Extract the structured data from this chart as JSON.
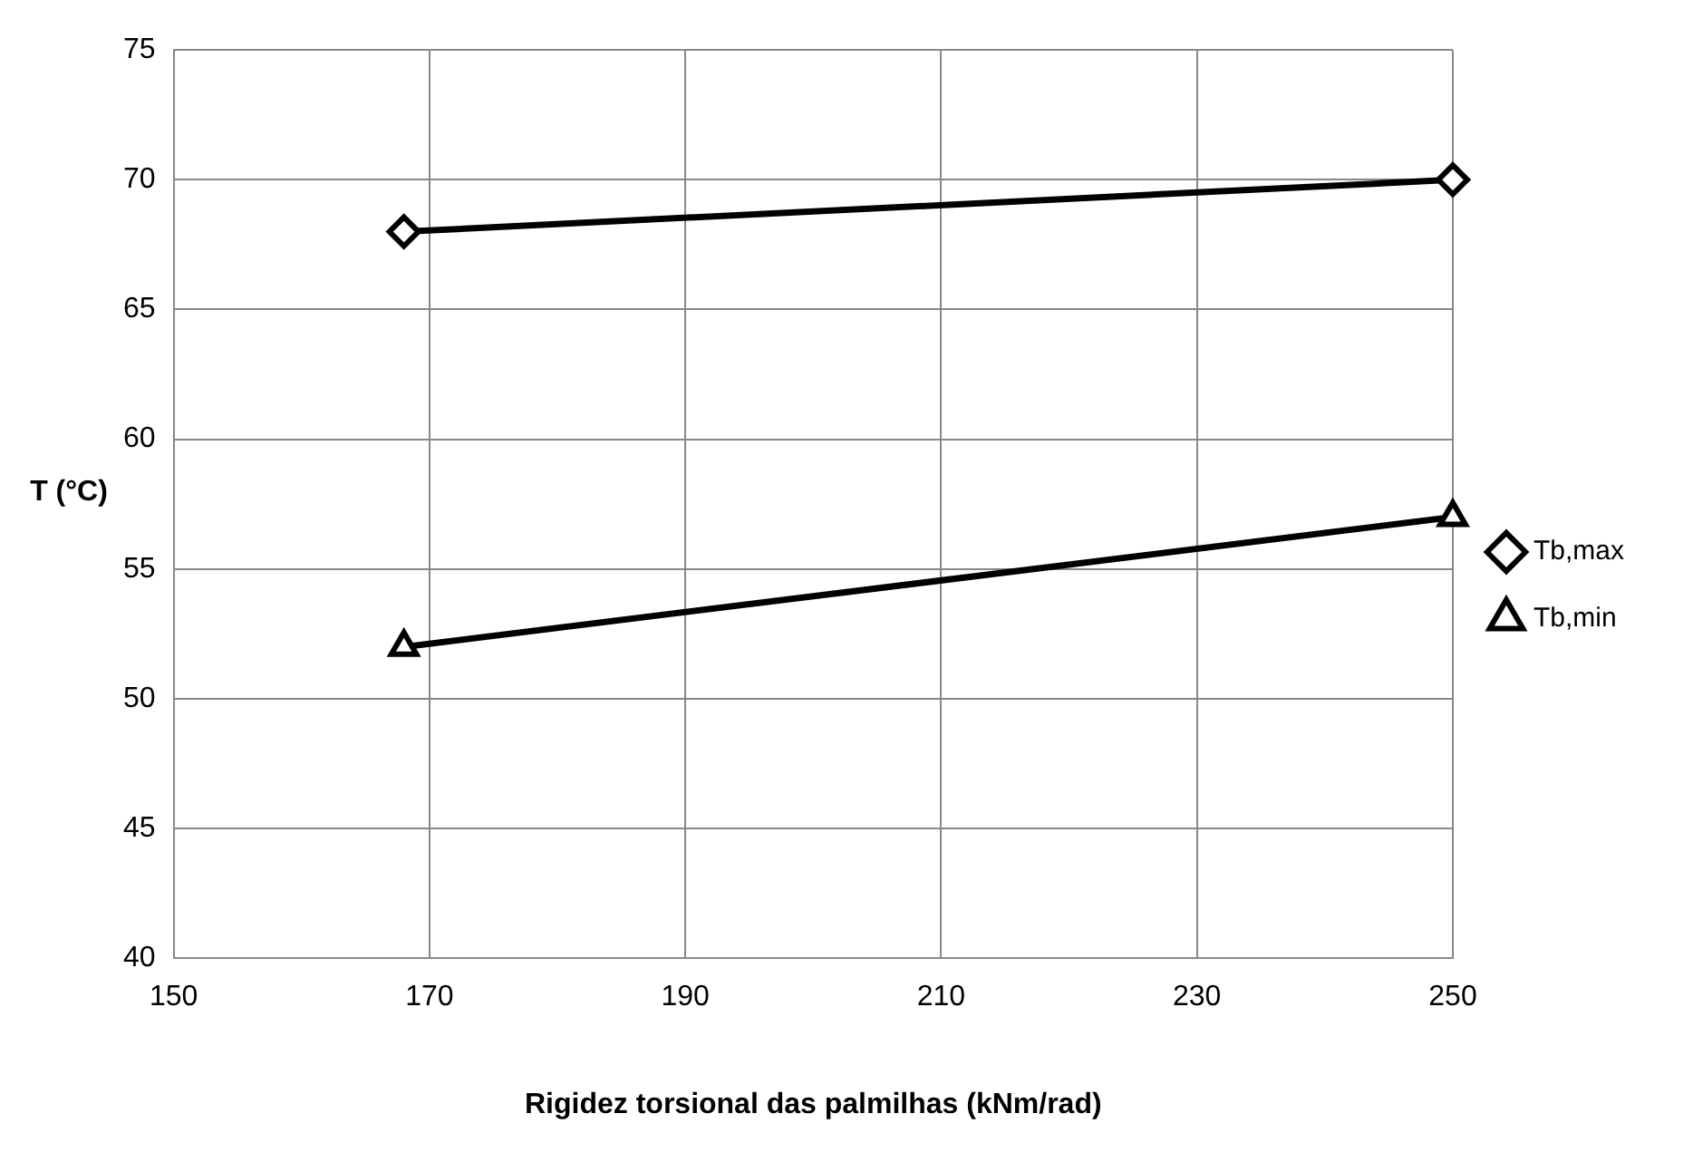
{
  "chart_data": {
    "type": "line",
    "xlabel": "Rigidez torsional das palmilhas (kNm/rad)",
    "ylabel": "T (°C)",
    "xlim": [
      150,
      250
    ],
    "xticks": [
      150,
      170,
      190,
      210,
      230,
      250
    ],
    "ylim": [
      40,
      75
    ],
    "yticks": [
      40,
      45,
      50,
      55,
      60,
      65,
      70,
      75
    ],
    "grid": true,
    "legend": "right",
    "line_style": "solid",
    "x": [
      168,
      250
    ],
    "series": [
      {
        "name": "Tb,max",
        "color": "#000000",
        "marker": "diamond",
        "values": [
          68,
          70
        ]
      },
      {
        "name": "Tb,min",
        "color": "#000000",
        "marker": "triangle",
        "values": [
          52,
          57
        ]
      }
    ]
  }
}
